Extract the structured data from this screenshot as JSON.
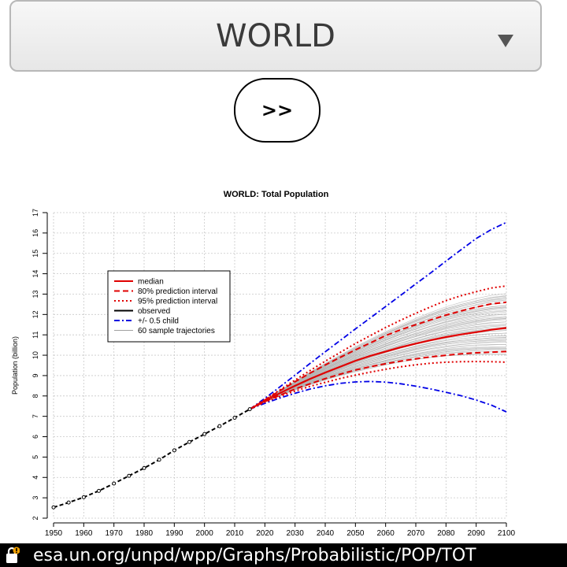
{
  "region_select": {
    "value": "WORLD"
  },
  "next_button": {
    "label": ">>"
  },
  "footer": {
    "url": "esa.un.org/unpd/wpp/Graphs/Probabilistic/POP/TOT"
  },
  "chart_data": {
    "type": "line",
    "title": "WORLD: Total Population",
    "xlabel": "",
    "ylabel": "Population (billion)",
    "xlim": [
      1950,
      2100
    ],
    "ylim": [
      2,
      17
    ],
    "x_ticks": [
      1950,
      1960,
      1970,
      1980,
      1990,
      2000,
      2010,
      2020,
      2030,
      2040,
      2050,
      2060,
      2070,
      2080,
      2090,
      2100
    ],
    "y_ticks": [
      2,
      3,
      4,
      5,
      6,
      7,
      8,
      9,
      10,
      11,
      12,
      13,
      14,
      15,
      16,
      17
    ],
    "grid": true,
    "legend_position": "top-left",
    "legend": [
      {
        "label": "median",
        "color": "#e00000",
        "style": "solid"
      },
      {
        "label": "80% prediction interval",
        "color": "#e00000",
        "style": "dashed"
      },
      {
        "label": "95% prediction interval",
        "color": "#e00000",
        "style": "dotted"
      },
      {
        "label": "observed",
        "color": "#000000",
        "style": "solid"
      },
      {
        "label": "+/- 0.5 child",
        "color": "#0000e0",
        "style": "dashdot"
      },
      {
        "label": "60 sample trajectories",
        "color": "#a0a0a0",
        "style": "solid"
      }
    ],
    "observed": {
      "x": [
        1950,
        1955,
        1960,
        1965,
        1970,
        1975,
        1980,
        1985,
        1990,
        1995,
        2000,
        2005,
        2010,
        2015
      ],
      "y": [
        2.53,
        2.77,
        3.03,
        3.34,
        3.7,
        4.08,
        4.46,
        4.87,
        5.33,
        5.74,
        6.13,
        6.52,
        6.93,
        7.35
      ]
    },
    "projection_x": [
      2015,
      2020,
      2025,
      2030,
      2035,
      2040,
      2045,
      2050,
      2055,
      2060,
      2065,
      2070,
      2075,
      2080,
      2085,
      2090,
      2095,
      2100
    ],
    "median": [
      7.35,
      7.76,
      8.14,
      8.5,
      8.84,
      9.15,
      9.44,
      9.73,
      9.97,
      10.18,
      10.39,
      10.57,
      10.74,
      10.89,
      11.02,
      11.13,
      11.25,
      11.34
    ],
    "pi80_upper": [
      7.35,
      7.8,
      8.26,
      8.7,
      9.12,
      9.52,
      9.9,
      10.26,
      10.61,
      10.96,
      11.25,
      11.5,
      11.74,
      11.97,
      12.17,
      12.36,
      12.52,
      12.6
    ],
    "pi80_lower": [
      7.35,
      7.72,
      8.04,
      8.34,
      8.6,
      8.85,
      9.07,
      9.27,
      9.44,
      9.58,
      9.71,
      9.82,
      9.92,
      10.0,
      10.07,
      10.12,
      10.15,
      10.18
    ],
    "pi95_upper": [
      7.35,
      7.82,
      8.3,
      8.78,
      9.25,
      9.71,
      10.14,
      10.57,
      10.97,
      11.36,
      11.72,
      12.06,
      12.38,
      12.68,
      12.92,
      13.12,
      13.3,
      13.4
    ],
    "pi95_lower": [
      7.35,
      7.7,
      7.98,
      8.24,
      8.47,
      8.67,
      8.86,
      9.02,
      9.17,
      9.31,
      9.43,
      9.53,
      9.61,
      9.66,
      9.68,
      9.69,
      9.68,
      9.66
    ],
    "plus_half_child": [
      7.35,
      7.88,
      8.45,
      9.02,
      9.6,
      10.17,
      10.73,
      11.29,
      11.84,
      12.39,
      12.94,
      13.5,
      14.05,
      14.62,
      15.18,
      15.73,
      16.17,
      16.52
    ],
    "minus_half_child": [
      7.35,
      7.64,
      7.9,
      8.13,
      8.34,
      8.5,
      8.62,
      8.69,
      8.71,
      8.68,
      8.6,
      8.48,
      8.34,
      8.18,
      8.01,
      7.8,
      7.55,
      7.22
    ],
    "sample_trajectories_count": 60
  }
}
